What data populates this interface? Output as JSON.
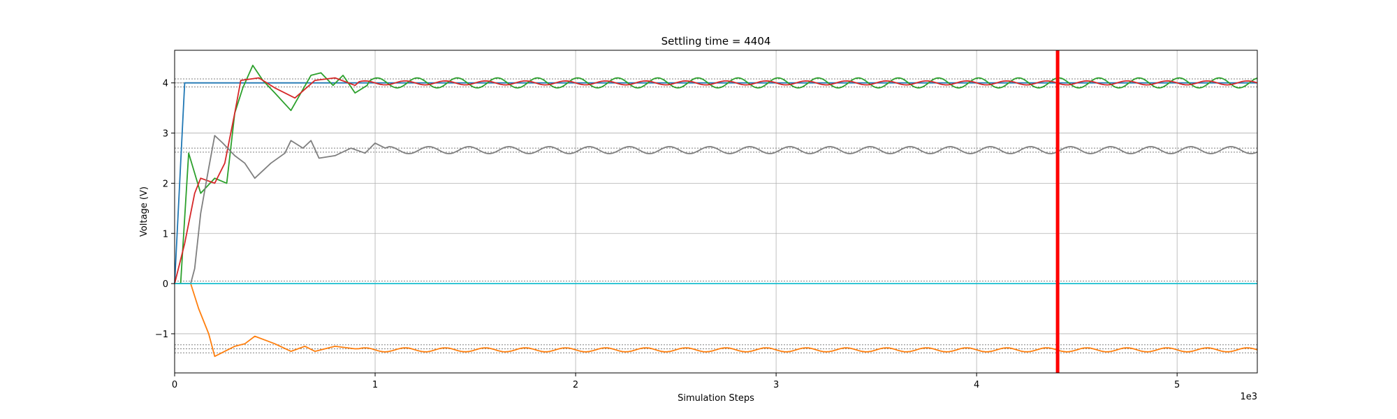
{
  "chart_data": {
    "type": "line",
    "title": "Settling time = 4404",
    "xlabel": "Simulation Steps",
    "ylabel": "Voltage (V)",
    "x_offset_label": "1e3",
    "xlim": [
      0,
      5.4
    ],
    "ylim": [
      -1.78,
      4.65
    ],
    "xticks": [
      0,
      1,
      2,
      3,
      4,
      5
    ],
    "xtick_labels": [
      "0",
      "1",
      "2",
      "3",
      "4",
      "5"
    ],
    "yticks": [
      -1,
      0,
      1,
      2,
      3,
      4
    ],
    "ytick_labels": [
      "−1",
      "0",
      "1",
      "2",
      "3",
      "4"
    ],
    "grid": true,
    "settling_marker": {
      "x": 4.404,
      "color": "#ff0000"
    },
    "reference_bands": [
      {
        "y": 4.08,
        "color": "#808080"
      },
      {
        "y": 3.92,
        "color": "#808080"
      },
      {
        "y": 4.0,
        "color": "#808080"
      },
      {
        "y": 2.7,
        "color": "#808080"
      },
      {
        "y": 2.62,
        "color": "#808080"
      },
      {
        "y": 0.05,
        "color": "#808080"
      },
      {
        "y": 0.0,
        "color": "#808080"
      },
      {
        "y": -1.22,
        "color": "#808080"
      },
      {
        "y": -1.3,
        "color": "#808080"
      },
      {
        "y": -1.38,
        "color": "#808080"
      }
    ],
    "series": [
      {
        "color": "#1f77b4",
        "kind": "step_blue"
      },
      {
        "color": "#ff7f0e",
        "kind": "orange"
      },
      {
        "color": "#2ca02c",
        "kind": "green"
      },
      {
        "color": "#d62728",
        "kind": "red"
      },
      {
        "color": "#7f7f7f",
        "kind": "gray"
      },
      {
        "color": "#17becf",
        "kind": "zero"
      }
    ]
  }
}
